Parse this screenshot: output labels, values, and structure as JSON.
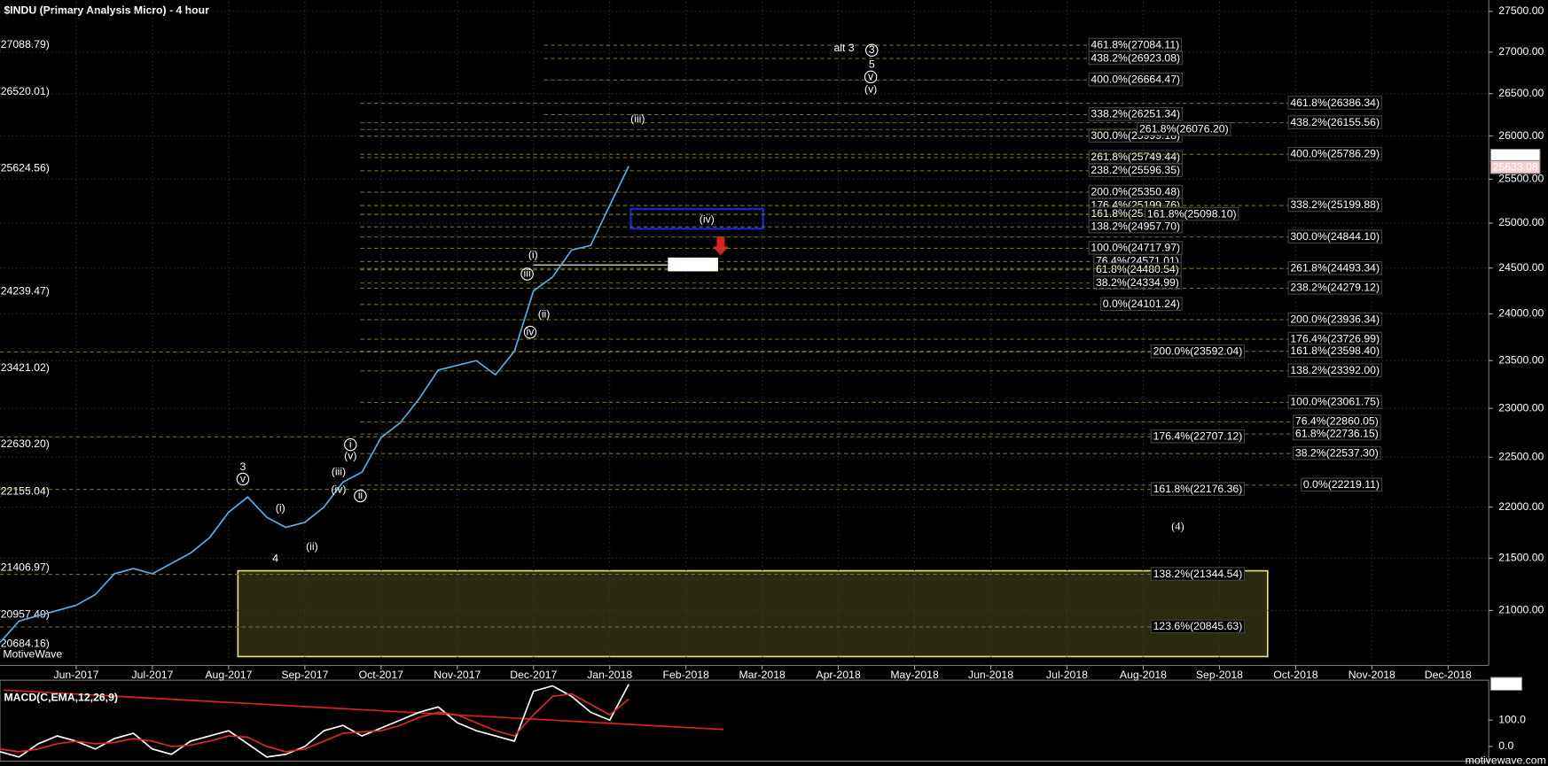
{
  "chart_data": [
    {
      "type": "line",
      "title": "$INDU (Primary Analysis Micro) - 4 hour",
      "watermark": "MotiveWave",
      "log_scale": true,
      "grid": true,
      "color": "#5aaee6",
      "categories": [
        null,
        null,
        null,
        null,
        "Jun-2017",
        null,
        null,
        null,
        "Jul-2017",
        null,
        null,
        null,
        "Aug-2017",
        null,
        null,
        null,
        "Sep-2017",
        null,
        null,
        null,
        "Oct-2017",
        null,
        null,
        null,
        "Nov-2017",
        null,
        null,
        null,
        "Dec-2017",
        null,
        null,
        null,
        "Jan-2018",
        null,
        null,
        null,
        "Feb-2018",
        null,
        null,
        null,
        "Mar-2018",
        null,
        null,
        null,
        "Apr-2018",
        null,
        null,
        null,
        "May-2018",
        null,
        null,
        null,
        "Jun-2018",
        null,
        null,
        null,
        "Jul-2018",
        null,
        null,
        null,
        "Aug-2018",
        null,
        null,
        null,
        "Sep-2018",
        null,
        null,
        null,
        "Oct-2018",
        null,
        null,
        null,
        "Nov-2018",
        null,
        null,
        null,
        "Dec-2018",
        null,
        null
      ],
      "values": [
        20700,
        20900,
        20950,
        21000,
        21050,
        21150,
        21350,
        21400,
        21350,
        21450,
        21550,
        21700,
        21950,
        22100,
        21900,
        21800,
        21850,
        22000,
        22250,
        22350,
        22700,
        22850,
        23100,
        23400,
        23450,
        23500,
        23350,
        23600,
        24250,
        24400,
        24700,
        24750,
        25200,
        25650,
        null,
        null,
        null,
        null,
        null,
        null,
        null,
        null,
        null,
        null,
        null,
        null,
        null,
        null,
        null,
        null,
        null,
        null,
        null,
        null,
        null,
        null,
        null,
        null,
        null,
        null,
        null,
        null,
        null,
        null,
        null,
        null,
        null,
        null,
        null,
        null,
        null,
        null,
        null,
        null,
        null,
        null,
        null,
        null,
        null
      ],
      "ylim": [
        20487,
        27617
      ],
      "yticks": [
        {
          "value": 27500,
          "label": "27500.00"
        },
        {
          "value": 27000,
          "label": "27000.00"
        },
        {
          "value": 26500,
          "label": "26500.00"
        },
        {
          "value": 26000,
          "label": "26000.00"
        },
        {
          "value": 25500,
          "label": "25500.00"
        },
        {
          "value": 25000,
          "label": "25000.00"
        },
        {
          "value": 24500,
          "label": "24500.00"
        },
        {
          "value": 24000,
          "label": "24000.00"
        },
        {
          "value": 23500,
          "label": "23500.00"
        },
        {
          "value": 23000,
          "label": "23000.00"
        },
        {
          "value": 22500,
          "label": "22500.00"
        },
        {
          "value": 22000,
          "label": "22000.00"
        },
        {
          "value": 21500,
          "label": "21500.00"
        },
        {
          "value": 21000,
          "label": "21000.00"
        }
      ],
      "last_price_labels": [
        {
          "value": 25765.54,
          "label": "25765.54"
        },
        {
          "value": 25633.08,
          "label": "25633.08"
        }
      ],
      "price_tags": [
        {
          "value": 27088.79,
          "label": "(27088.79)"
        },
        {
          "value": 26520.01,
          "label": "(26520.01)"
        },
        {
          "value": 25624.56,
          "label": "(25624.56)"
        },
        {
          "value": 24239.47,
          "label": "(24239.47)"
        },
        {
          "value": 23421.02,
          "label": "(23421.02)"
        },
        {
          "value": 22630.2,
          "label": "(22630.20)"
        },
        {
          "value": 22155.04,
          "label": "(22155.04)"
        },
        {
          "value": 21406.97,
          "label": "(21406.97)"
        },
        {
          "value": 20957.49,
          "label": "(20957.49)"
        },
        {
          "value": 20684.16,
          "label": "(20684.16)"
        }
      ],
      "fib_levels": [
        {
          "value": 27084.11,
          "label": "461.8%(27084.11)"
        },
        {
          "value": 26923.08,
          "label": "438.2%(26923.08)"
        },
        {
          "value": 26664.47,
          "label": "400.0%(26664.47)"
        },
        {
          "value": 26251.34,
          "label": "338.2%(26251.34)"
        },
        {
          "value": 25999.18,
          "label": "300.0%(25999.18)"
        },
        {
          "value": 25749.44,
          "label": "261.8%(25749.44)"
        },
        {
          "value": 25596.35,
          "label": "238.2%(25596.35)"
        },
        {
          "value": 25350.48,
          "label": "200.0%(25350.48)"
        },
        {
          "value": 25199.76,
          "label": "176.4%(25199.76)"
        },
        {
          "value": 25100.97,
          "label": "161.8%(25100.97)"
        },
        {
          "value": 24957.7,
          "label": "138.2%(24957.70)"
        },
        {
          "value": 24717.97,
          "label": "100.0%(24717.97)"
        },
        {
          "value": 24571.01,
          "label": "76.4%(24571.01)"
        },
        {
          "value": 24480.54,
          "label": "61.8%(24480.54)"
        },
        {
          "value": 24334.99,
          "label": "38.2%(24334.99)"
        },
        {
          "value": 24101.24,
          "label": "0.0%(24101.24)"
        },
        {
          "value": 26386.34,
          "label": "461.8%(26386.34)"
        },
        {
          "value": 26155.56,
          "label": "438.2%(26155.56)"
        },
        {
          "value": 26076.2,
          "label": "261.8%(26076.20)"
        },
        {
          "value": 25786.29,
          "label": "400.0%(25786.29)"
        },
        {
          "value": 25199.88,
          "label": "338.2%(25199.88)"
        },
        {
          "value": 25098.1,
          "label": "161.8%(25098.10)"
        },
        {
          "value": 24844.1,
          "label": "300.0%(24844.10)"
        },
        {
          "value": 24493.34,
          "label": "261.8%(24493.34)"
        },
        {
          "value": 24279.12,
          "label": "238.2%(24279.12)"
        },
        {
          "value": 23936.34,
          "label": "200.0%(23936.34)"
        },
        {
          "value": 23726.99,
          "label": "176.4%(23726.99)"
        },
        {
          "value": 23598.4,
          "label": "161.8%(23598.40)"
        },
        {
          "value": 23392.0,
          "label": "138.2%(23392.00)"
        },
        {
          "value": 23061.75,
          "label": "100.0%(23061.75)"
        },
        {
          "value": 22860.05,
          "label": "76.4%(22860.05)"
        },
        {
          "value": 22736.15,
          "label": "61.8%(22736.15)"
        },
        {
          "value": 22537.3,
          "label": "38.2%(22537.30)"
        },
        {
          "value": 22219.11,
          "label": "0.0%(22219.11)"
        },
        {
          "value": 23592.04,
          "label": "200.0%(23592.04)"
        },
        {
          "value": 22707.12,
          "label": "176.4%(22707.12)"
        },
        {
          "value": 22176.36,
          "label": "161.8%(22176.36)"
        },
        {
          "value": 21344.54,
          "label": "138.2%(21344.54)"
        },
        {
          "value": 20845.63,
          "label": "123.6%(20845.63)"
        }
      ],
      "marker_level": {
        "value": 24534.04,
        "label": "24534.04"
      },
      "wave_labels": [
        "alt 3",
        "3",
        "5",
        "v",
        "(v)",
        "(iii)",
        "(iv)",
        "(i)",
        "iii",
        "(ii)",
        "iv",
        "3",
        "v",
        "(i)",
        "(ii)",
        "4",
        "i",
        "(v)",
        "(iii)",
        "(iv)",
        "ii",
        "(4)"
      ]
    },
    {
      "type": "macd",
      "title": "MACD(C,EMA,12,26,9)",
      "watermark": "motivewave.com",
      "ylim": [
        -48,
        244
      ],
      "yticks": [
        {
          "value": 100,
          "label": "100.0"
        },
        {
          "value": 0,
          "label": "0.0"
        }
      ],
      "last_value": {
        "value": 236,
        "label": "236.0"
      },
      "series": [
        {
          "color": "#ffffff",
          "values": [
            -20,
            -40,
            10,
            40,
            20,
            -10,
            30,
            50,
            -10,
            -30,
            20,
            40,
            60,
            10,
            -40,
            -30,
            0,
            60,
            80,
            40,
            70,
            100,
            130,
            150,
            90,
            60,
            40,
            20,
            210,
            230,
            190,
            130,
            100,
            236
          ]
        },
        {
          "color": "#e02828",
          "values": [
            -10,
            -20,
            -10,
            10,
            20,
            10,
            15,
            30,
            20,
            0,
            5,
            20,
            40,
            35,
            0,
            -20,
            -10,
            20,
            50,
            55,
            60,
            80,
            110,
            130,
            120,
            90,
            60,
            40,
            120,
            190,
            200,
            160,
            120,
            180
          ]
        }
      ]
    }
  ]
}
